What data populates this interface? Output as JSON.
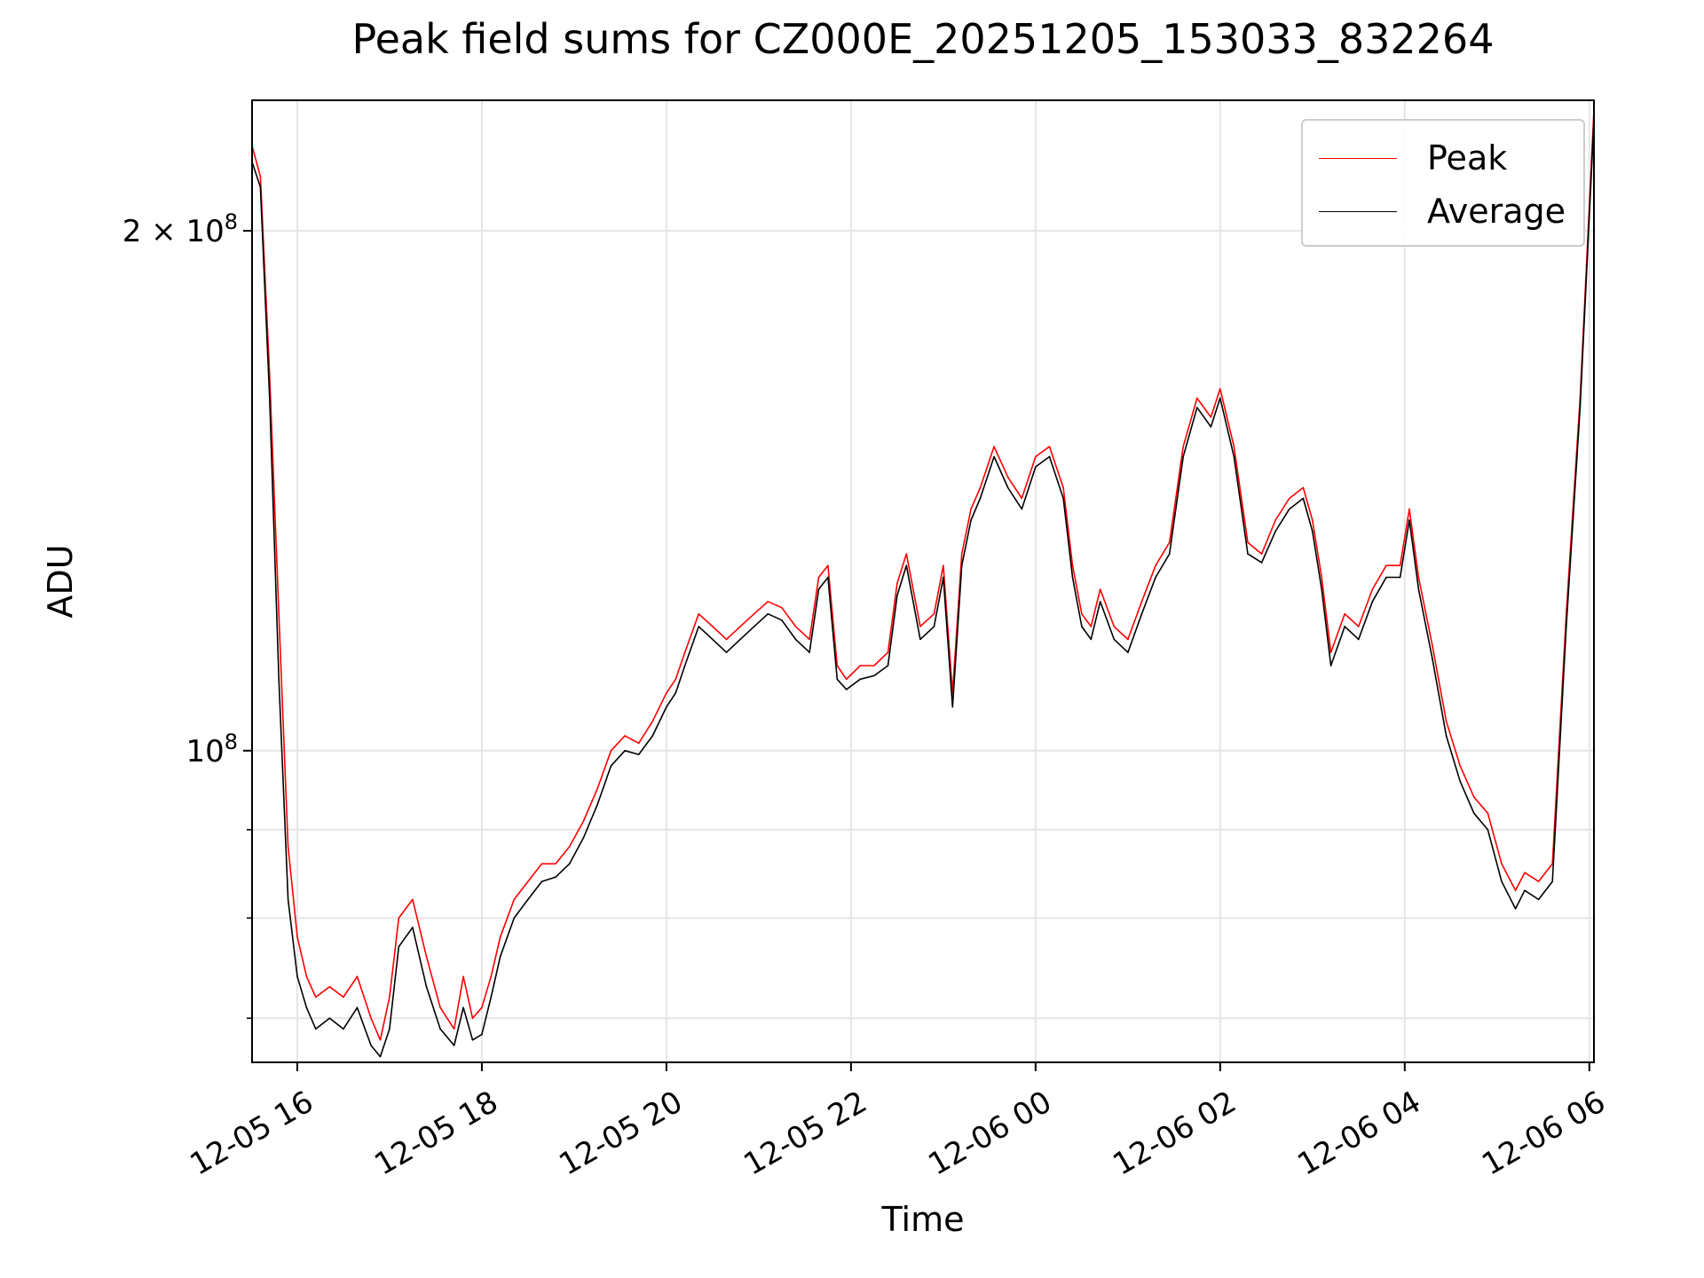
{
  "chart_data": {
    "type": "line",
    "title": "Peak field sums for CZ000E_20251205_153033_832264",
    "xlabel": "Time",
    "ylabel": "ADU",
    "yscale": "log",
    "grid": true,
    "legend_position": "top-right",
    "xlim_hours": [
      15.51,
      30.05
    ],
    "ylim": [
      66000000,
      238000000
    ],
    "x_ticks": [
      {
        "hour": 16,
        "label": "12-05 16"
      },
      {
        "hour": 18,
        "label": "12-05 18"
      },
      {
        "hour": 20,
        "label": "12-05 20"
      },
      {
        "hour": 22,
        "label": "12-05 22"
      },
      {
        "hour": 24,
        "label": "12-06 00"
      },
      {
        "hour": 26,
        "label": "12-06 02"
      },
      {
        "hour": 28,
        "label": "12-06 04"
      },
      {
        "hour": 30,
        "label": "12-06 06"
      }
    ],
    "y_major_ticks": [
      {
        "value": 100000000,
        "mantissa": "10",
        "exponent": "8"
      },
      {
        "value": 200000000,
        "mantissa": "2 × 10",
        "exponent": "8"
      }
    ],
    "y_minor_ticks": [
      70000000,
      80000000,
      90000000
    ],
    "series": [
      {
        "name": "Peak",
        "color": "#ff0000",
        "x_hours": [
          15.5,
          15.6,
          15.7,
          15.8,
          15.9,
          16.0,
          16.1,
          16.2,
          16.35,
          16.5,
          16.65,
          16.8,
          16.9,
          17.0,
          17.1,
          17.25,
          17.4,
          17.55,
          17.7,
          17.8,
          17.9,
          18.0,
          18.1,
          18.2,
          18.35,
          18.5,
          18.65,
          18.8,
          18.95,
          19.1,
          19.25,
          19.4,
          19.55,
          19.7,
          19.85,
          20.0,
          20.1,
          20.2,
          20.35,
          20.5,
          20.65,
          20.8,
          20.95,
          21.1,
          21.25,
          21.4,
          21.55,
          21.65,
          21.75,
          21.85,
          21.95,
          22.1,
          22.25,
          22.4,
          22.5,
          22.6,
          22.75,
          22.9,
          23.0,
          23.1,
          23.2,
          23.3,
          23.4,
          23.55,
          23.7,
          23.85,
          24.0,
          24.15,
          24.3,
          24.4,
          24.5,
          24.6,
          24.7,
          24.85,
          25.0,
          25.15,
          25.3,
          25.45,
          25.6,
          25.75,
          25.9,
          26.0,
          26.15,
          26.3,
          26.45,
          26.6,
          26.75,
          26.9,
          27.0,
          27.1,
          27.2,
          27.35,
          27.5,
          27.65,
          27.8,
          27.95,
          28.05,
          28.15,
          28.3,
          28.45,
          28.6,
          28.75,
          28.9,
          29.05,
          29.2,
          29.3,
          29.45,
          29.6,
          29.75,
          29.9,
          30.05
        ],
        "values": [
          225000000,
          215000000,
          165000000,
          120000000,
          88000000,
          78000000,
          74000000,
          72000000,
          73000000,
          72000000,
          74000000,
          70000000,
          68000000,
          72000000,
          80000000,
          82000000,
          76000000,
          71000000,
          69000000,
          74000000,
          70000000,
          71000000,
          74000000,
          78000000,
          82000000,
          84000000,
          86000000,
          86000000,
          88000000,
          91000000,
          95000000,
          100000000,
          102000000,
          101000000,
          104000000,
          108000000,
          110000000,
          114000000,
          120000000,
          118000000,
          116000000,
          118000000,
          120000000,
          122000000,
          121000000,
          118000000,
          116000000,
          126000000,
          128000000,
          112000000,
          110000000,
          112000000,
          112000000,
          114000000,
          125000000,
          130000000,
          118000000,
          120000000,
          128000000,
          108000000,
          130000000,
          138000000,
          142000000,
          150000000,
          144000000,
          140000000,
          148000000,
          150000000,
          142000000,
          128000000,
          120000000,
          118000000,
          124000000,
          118000000,
          116000000,
          122000000,
          128000000,
          132000000,
          150000000,
          160000000,
          156000000,
          162000000,
          150000000,
          132000000,
          130000000,
          136000000,
          140000000,
          142000000,
          136000000,
          126000000,
          114000000,
          120000000,
          118000000,
          124000000,
          128000000,
          128000000,
          138000000,
          126000000,
          115000000,
          104000000,
          98000000,
          94000000,
          92000000,
          86000000,
          83000000,
          85000000,
          84000000,
          86000000,
          120000000,
          160000000,
          235000000
        ]
      },
      {
        "name": "Average",
        "color": "#000000",
        "x_hours": [
          15.5,
          15.6,
          15.7,
          15.8,
          15.9,
          16.0,
          16.1,
          16.2,
          16.35,
          16.5,
          16.65,
          16.8,
          16.9,
          17.0,
          17.1,
          17.25,
          17.4,
          17.55,
          17.7,
          17.8,
          17.9,
          18.0,
          18.1,
          18.2,
          18.35,
          18.5,
          18.65,
          18.8,
          18.95,
          19.1,
          19.25,
          19.4,
          19.55,
          19.7,
          19.85,
          20.0,
          20.1,
          20.2,
          20.35,
          20.5,
          20.65,
          20.8,
          20.95,
          21.1,
          21.25,
          21.4,
          21.55,
          21.65,
          21.75,
          21.85,
          21.95,
          22.1,
          22.25,
          22.4,
          22.5,
          22.6,
          22.75,
          22.9,
          23.0,
          23.1,
          23.2,
          23.3,
          23.4,
          23.55,
          23.7,
          23.85,
          24.0,
          24.15,
          24.3,
          24.4,
          24.5,
          24.6,
          24.7,
          24.85,
          25.0,
          25.15,
          25.3,
          25.45,
          25.6,
          25.75,
          25.9,
          26.0,
          26.15,
          26.3,
          26.45,
          26.6,
          26.75,
          26.9,
          27.0,
          27.1,
          27.2,
          27.35,
          27.5,
          27.65,
          27.8,
          27.95,
          28.05,
          28.15,
          28.3,
          28.45,
          28.6,
          28.75,
          28.9,
          29.05,
          29.2,
          29.3,
          29.45,
          29.6,
          29.75,
          29.9,
          30.05
        ],
        "values": [
          220000000,
          212000000,
          160000000,
          110000000,
          82000000,
          74000000,
          71000000,
          69000000,
          70000000,
          69000000,
          71000000,
          67500000,
          66500000,
          69000000,
          77000000,
          79000000,
          73000000,
          69000000,
          67500000,
          71000000,
          68000000,
          68500000,
          72000000,
          76000000,
          80000000,
          82000000,
          84000000,
          84500000,
          86000000,
          89000000,
          93000000,
          98000000,
          100000000,
          99500000,
          102000000,
          106000000,
          108000000,
          112000000,
          118000000,
          116000000,
          114000000,
          116000000,
          118000000,
          120000000,
          119000000,
          116000000,
          114000000,
          124000000,
          126000000,
          110000000,
          108500000,
          110000000,
          110500000,
          112000000,
          123000000,
          128000000,
          116000000,
          118000000,
          126000000,
          106000000,
          128000000,
          136000000,
          140000000,
          148000000,
          142000000,
          138000000,
          146000000,
          148000000,
          140000000,
          126000000,
          118000000,
          116000000,
          122000000,
          116000000,
          114000000,
          120000000,
          126000000,
          130000000,
          148000000,
          158000000,
          154000000,
          160000000,
          148000000,
          130000000,
          128500000,
          134000000,
          138000000,
          140000000,
          134000000,
          124000000,
          112000000,
          118000000,
          116000000,
          122000000,
          126000000,
          126000000,
          136000000,
          124000000,
          113000000,
          102000000,
          96000000,
          92000000,
          90000000,
          84000000,
          81000000,
          83000000,
          82000000,
          84000000,
          118000000,
          158000000,
          232000000
        ]
      }
    ]
  }
}
